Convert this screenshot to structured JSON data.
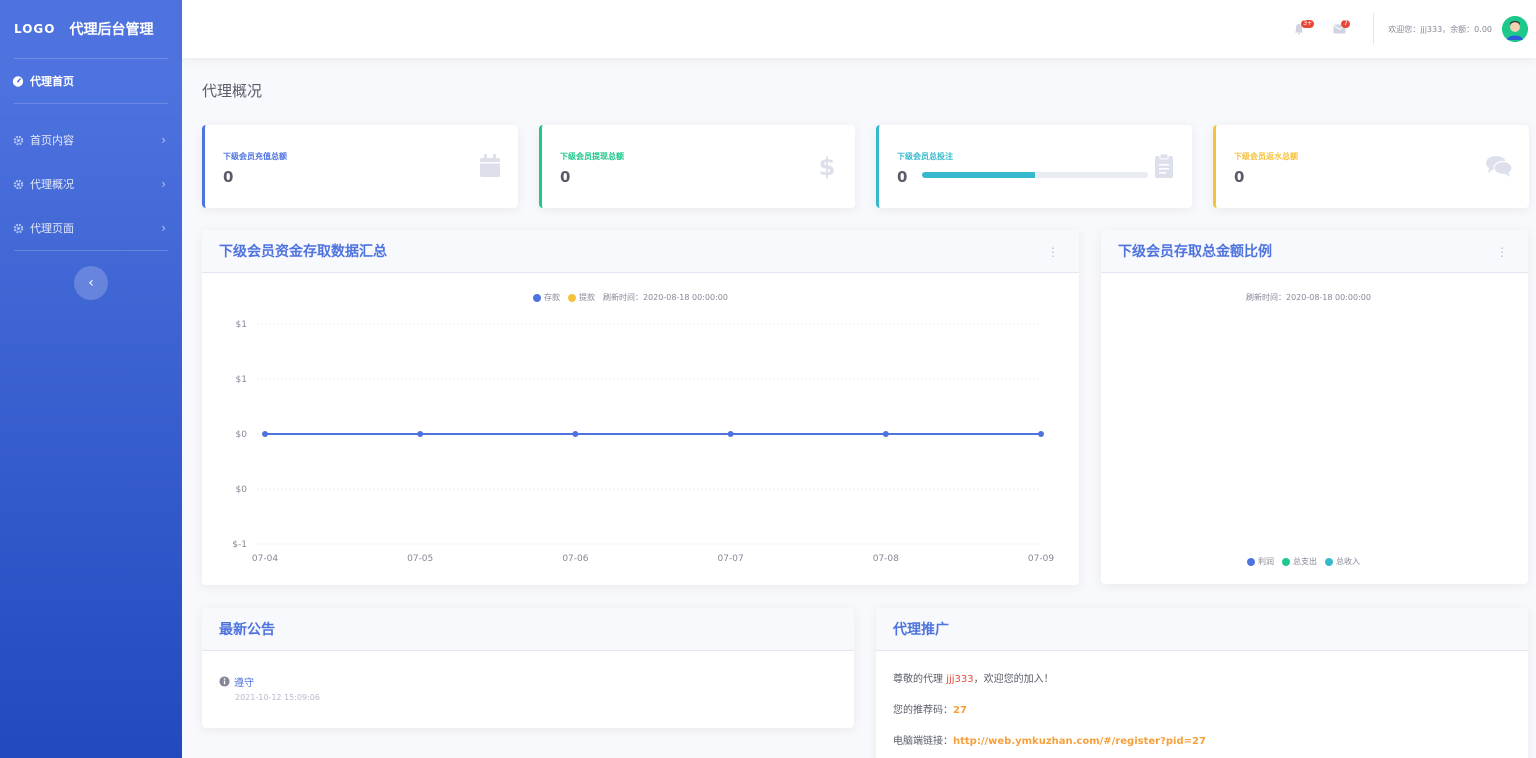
{
  "brand": {
    "logo": "LOGO",
    "title": "代理后台管理"
  },
  "sidebar": {
    "active": {
      "label": "代理首页"
    },
    "items": [
      {
        "label": "首页内容"
      },
      {
        "label": "代理概况"
      },
      {
        "label": "代理页面"
      }
    ],
    "toggle": "‹"
  },
  "topbar": {
    "alerts_badge": "3+",
    "messages_badge": "7",
    "welcome": "欢迎您：jjj333，余额：0.00"
  },
  "page": {
    "title": "代理概况"
  },
  "stats": [
    {
      "label": "下级会员充值总额",
      "value": "0",
      "color": "#4e73df",
      "icon": "calendar-icon"
    },
    {
      "label": "下级会员提现总额",
      "value": "0",
      "color": "#1cc88a",
      "icon": "dollar-icon"
    },
    {
      "label": "下级会员总投注",
      "value": "0",
      "color": "#36b9cc",
      "icon": "clipboard-icon",
      "progress": 0.5
    },
    {
      "label": "下级会员返水总额",
      "value": "0",
      "color": "#f6c23e",
      "icon": "comments-icon"
    }
  ],
  "line_panel": {
    "title": "下级会员资金存取数据汇总",
    "legend": [
      {
        "name": "存款",
        "color": "#4e73df"
      },
      {
        "name": "提款",
        "color": "#f6c23e"
      }
    ],
    "refresh": "刷新时间：2020-08-18 00:00:00"
  },
  "chart_data": {
    "type": "line",
    "categories": [
      "07-04",
      "07-05",
      "07-06",
      "07-07",
      "07-08",
      "07-09"
    ],
    "series": [
      {
        "name": "存款",
        "values": [
          0,
          0,
          0,
          0,
          0,
          0
        ]
      }
    ],
    "y_ticks": [
      "$1",
      "$1",
      "$0",
      "$0",
      "$-1"
    ],
    "ylim": [
      -1,
      1
    ],
    "grid": true,
    "legend_position": "top-center"
  },
  "pie_panel": {
    "title": "下级会员存取总金额比例",
    "refresh": "刷新时间：2020-08-18 00:00:00",
    "legend": [
      {
        "name": "利润",
        "color": "#4e73df"
      },
      {
        "name": "总支出",
        "color": "#1cc88a"
      },
      {
        "name": "总收入",
        "color": "#36b9cc"
      }
    ]
  },
  "notice_panel": {
    "title": "最新公告",
    "items": [
      {
        "title": "遵守",
        "date": "2021-10-12 15:09:06"
      }
    ]
  },
  "promo_panel": {
    "title": "代理推广",
    "greeting_pre": "尊敬的代理",
    "greeting_name": "jjj333",
    "greeting_post": "，欢迎您的加入！",
    "code_label": "您的推荐码：",
    "code_value": "27",
    "link_label": "电脑端链接：",
    "link_value": "http://web.ymkuzhan.com/#/register?pid=27"
  }
}
